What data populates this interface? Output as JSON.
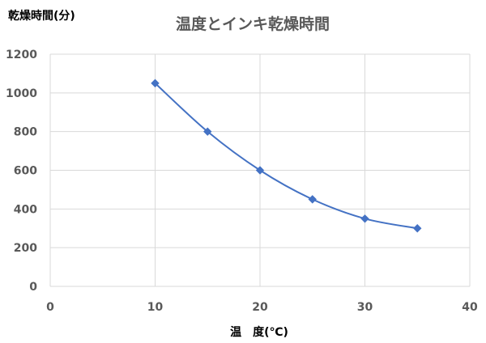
{
  "chart_data": {
    "type": "scatter",
    "title": "温度とインキ乾燥時間",
    "ylabel": "乾燥時間(分)",
    "xlabel": "温　度(℃)",
    "xlim": [
      0,
      40
    ],
    "ylim": [
      0,
      1200
    ],
    "x_ticks": [
      0,
      10,
      20,
      30,
      40
    ],
    "y_ticks": [
      0,
      200,
      400,
      600,
      800,
      1000,
      1200
    ],
    "grid": true,
    "smooth_line": true,
    "marker": "diamond",
    "series_color": "#4472c4",
    "series": [
      {
        "x": [
          10,
          15,
          20,
          25,
          30,
          35
        ],
        "y": [
          1050,
          800,
          600,
          450,
          350,
          300
        ]
      }
    ]
  }
}
